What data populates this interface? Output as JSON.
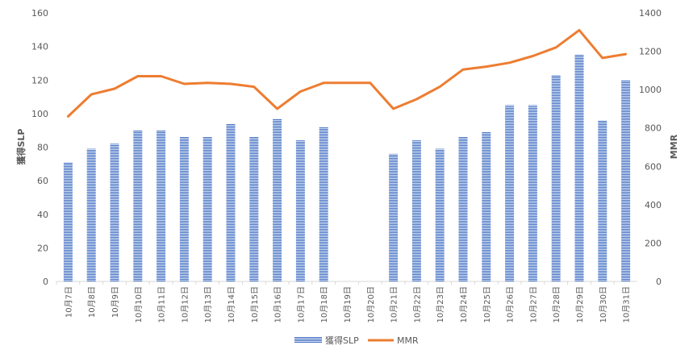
{
  "chart_data": {
    "type": "bar",
    "title": "",
    "categories": [
      "10月7日",
      "10月8日",
      "10月9日",
      "10月10日",
      "10月11日",
      "10月12日",
      "10月13日",
      "10月14日",
      "10月15日",
      "10月16日",
      "10月17日",
      "10月18日",
      "10月19日",
      "10月20日",
      "10月21日",
      "10月22日",
      "10月23日",
      "10月24日",
      "10月25日",
      "10月26日",
      "10月27日",
      "10月28日",
      "10月29日",
      "10月30日",
      "10月31日"
    ],
    "series": [
      {
        "name": "獲得SLP",
        "type": "bar",
        "axis": "left",
        "color": "#4472C4",
        "values": [
          71,
          79,
          82,
          90,
          90,
          86,
          86,
          94,
          86,
          97,
          84,
          92,
          null,
          null,
          76,
          84,
          79,
          86,
          89,
          105,
          105,
          123,
          135,
          96,
          120
        ]
      },
      {
        "name": "MMR",
        "type": "line",
        "axis": "right",
        "color": "#ED7D31",
        "values": [
          860,
          975,
          1005,
          1070,
          1070,
          1030,
          1035,
          1030,
          1015,
          900,
          990,
          1035,
          1035,
          1035,
          900,
          950,
          1015,
          1105,
          1120,
          1140,
          1175,
          1220,
          1310,
          1165,
          1185
        ]
      }
    ],
    "ylabel": "獲得SLP",
    "ylim": [
      0,
      160
    ],
    "yticks": [
      0,
      20,
      40,
      60,
      80,
      100,
      120,
      140,
      160
    ],
    "y2label": "MMR",
    "y2lim": [
      0,
      1400
    ],
    "y2ticks": [
      0,
      200,
      400,
      600,
      800,
      1000,
      1200,
      1400
    ],
    "grid": false,
    "legend": "bottom"
  }
}
